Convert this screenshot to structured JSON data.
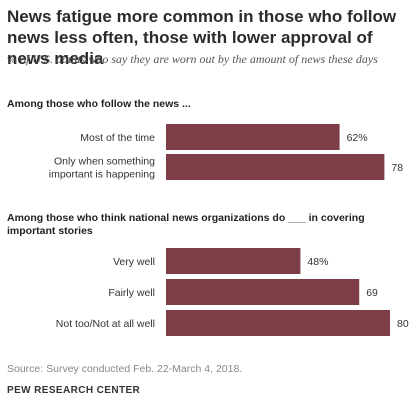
{
  "title": "News fatigue more common in those who follow news less often, those with lower approval of news media",
  "subtitle": "% of U.S. adults who say they are worn out by the amount of news these days",
  "source": "Source: Survey conducted Feb. 22-March 4, 2018.",
  "organization": "PEW RESEARCH CENTER",
  "colors": {
    "bar": "#7d3e48",
    "text": "#333333"
  },
  "chart_data": [
    {
      "type": "bar",
      "orientation": "horizontal",
      "group_label": "Among those who follow the news ...",
      "categories": [
        "Most of the time",
        "Only when something important is happening"
      ],
      "category_lines": [
        [
          "Most of the time"
        ],
        [
          "Only when something",
          "important is happening"
        ]
      ],
      "values": [
        62,
        78
      ],
      "value_labels": [
        "62%",
        "78"
      ],
      "xlim": [
        0,
        100
      ]
    },
    {
      "type": "bar",
      "orientation": "horizontal",
      "group_label": "Among those who think national news organizations do ___ in covering important stories",
      "group_label_lines": [
        "Among those who think national news organizations do ___ in covering",
        "important stories"
      ],
      "categories": [
        "Very well",
        "Fairly well",
        "Not too/Not at all well"
      ],
      "category_lines": [
        [
          "Very well"
        ],
        [
          "Fairly well"
        ],
        [
          "Not too/Not at all well"
        ]
      ],
      "values": [
        48,
        69,
        80
      ],
      "value_labels": [
        "48%",
        "69",
        "80"
      ],
      "xlim": [
        0,
        100
      ]
    }
  ]
}
